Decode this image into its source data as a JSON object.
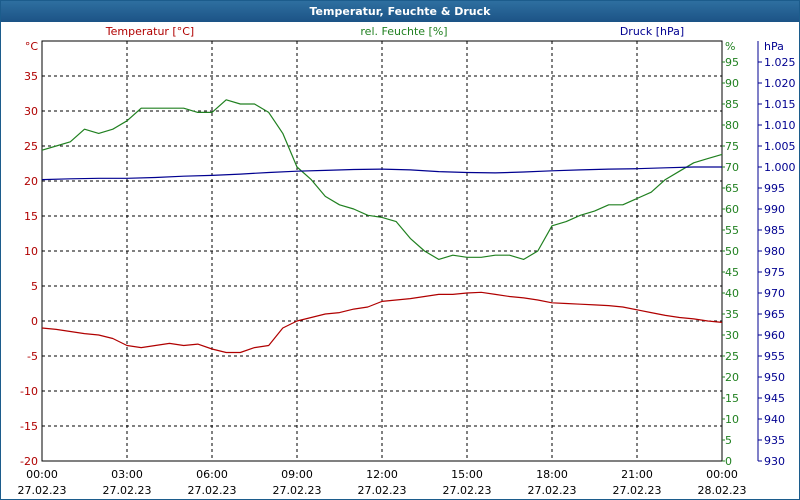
{
  "window": {
    "title": "Temperatur, Feuchte & Druck"
  },
  "chart_data": {
    "type": "line",
    "title": "Temperatur, Feuchte & Druck",
    "x_ticks": [
      {
        "time": "00:00",
        "date": "27.02.23"
      },
      {
        "time": "03:00",
        "date": "27.02.23"
      },
      {
        "time": "06:00",
        "date": "27.02.23"
      },
      {
        "time": "09:00",
        "date": "27.02.23"
      },
      {
        "time": "12:00",
        "date": "27.02.23"
      },
      {
        "time": "15:00",
        "date": "27.02.23"
      },
      {
        "time": "18:00",
        "date": "27.02.23"
      },
      {
        "time": "21:00",
        "date": "27.02.23"
      },
      {
        "time": "00:00",
        "date": "28.02.23"
      }
    ],
    "xlim": [
      0,
      24
    ],
    "grid": true,
    "axes": {
      "temperature": {
        "label": "Temperatur [°C]",
        "unit": "°C",
        "ylim": [
          -20,
          40
        ],
        "ticks": [
          "-20",
          "-15",
          "-10",
          "-5",
          "0",
          "5",
          "10",
          "15",
          "20",
          "25",
          "30",
          "35"
        ],
        "color": "#b00000"
      },
      "humidity": {
        "label": "rel. Feuchte [%]",
        "unit": "%",
        "ylim": [
          0,
          100
        ],
        "ticks": [
          "0",
          "5",
          "10",
          "15",
          "20",
          "25",
          "30",
          "35",
          "40",
          "45",
          "50",
          "55",
          "60",
          "65",
          "70",
          "75",
          "80",
          "85",
          "90",
          "95"
        ],
        "color": "#208020"
      },
      "pressure": {
        "label": "Druck [hPa]",
        "unit": "hPa",
        "ylim": [
          930,
          1030
        ],
        "ticks": [
          "930",
          "935",
          "940",
          "945",
          "950",
          "955",
          "960",
          "965",
          "970",
          "975",
          "980",
          "985",
          "990",
          "995",
          "1.000",
          "1.005",
          "1.010",
          "1.015",
          "1.020",
          "1.025"
        ],
        "color": "#000090"
      }
    },
    "series": [
      {
        "name": "Temperatur [°C]",
        "axis": "temperature",
        "color": "#b00000",
        "x": [
          0,
          0.5,
          1,
          1.5,
          2,
          2.5,
          3,
          3.5,
          4,
          4.5,
          5,
          5.5,
          6,
          6.5,
          7,
          7.5,
          8,
          8.5,
          9,
          9.5,
          10,
          10.5,
          11,
          11.5,
          12,
          12.5,
          13,
          13.5,
          14,
          14.5,
          15,
          15.5,
          16,
          16.5,
          17,
          17.5,
          18,
          18.5,
          19,
          19.5,
          20,
          20.5,
          21,
          21.5,
          22,
          22.5,
          23,
          23.5,
          24
        ],
        "y": [
          -1,
          -1.2,
          -1.5,
          -1.8,
          -2,
          -2.5,
          -3.5,
          -3.8,
          -3.5,
          -3.2,
          -3.5,
          -3.3,
          -4,
          -4.5,
          -4.5,
          -3.8,
          -3.5,
          -1,
          0,
          0.5,
          1,
          1.2,
          1.7,
          2,
          2.8,
          3,
          3.2,
          3.5,
          3.8,
          3.8,
          4,
          4.1,
          3.8,
          3.5,
          3.3,
          3,
          2.6,
          2.5,
          2.4,
          2.3,
          2.2,
          2,
          1.6,
          1.2,
          0.8,
          0.5,
          0.3,
          0,
          -0.2
        ]
      },
      {
        "name": "rel. Feuchte [%]",
        "axis": "humidity",
        "color": "#208020",
        "x": [
          0,
          0.5,
          1,
          1.5,
          2,
          2.5,
          3,
          3.5,
          4,
          4.5,
          5,
          5.5,
          6,
          6.5,
          7,
          7.5,
          8,
          8.5,
          9,
          9.5,
          10,
          10.5,
          11,
          11.5,
          12,
          12.5,
          13,
          13.5,
          14,
          14.5,
          15,
          15.5,
          16,
          16.5,
          17,
          17.5,
          18,
          18.5,
          19,
          19.5,
          20,
          20.5,
          21,
          21.5,
          22,
          22.5,
          23,
          23.5,
          24
        ],
        "y": [
          74,
          75,
          76,
          79,
          78,
          79,
          81,
          84,
          84,
          84,
          84,
          83,
          83,
          86,
          85,
          85,
          83,
          78,
          70,
          67,
          63,
          61,
          60,
          58.5,
          58,
          57,
          53,
          50,
          48,
          49,
          48.5,
          48.5,
          49,
          49,
          48,
          50,
          56,
          57,
          58.5,
          59.5,
          61,
          61,
          62.5,
          64,
          67,
          69,
          71,
          72,
          73
        ]
      },
      {
        "name": "Druck [hPa]",
        "axis": "pressure",
        "color": "#000090",
        "x": [
          0,
          1,
          2,
          3,
          4,
          5,
          6,
          7,
          8,
          9,
          10,
          11,
          12,
          13,
          14,
          15,
          16,
          17,
          18,
          19,
          20,
          21,
          22,
          23,
          24
        ],
        "y": [
          997,
          997.2,
          997.3,
          997.3,
          997.5,
          997.8,
          998,
          998.3,
          998.7,
          999,
          999.2,
          999.4,
          999.5,
          999.3,
          998.9,
          998.7,
          998.6,
          998.8,
          999.1,
          999.3,
          999.5,
          999.6,
          999.8,
          1000,
          1000
        ]
      }
    ]
  }
}
